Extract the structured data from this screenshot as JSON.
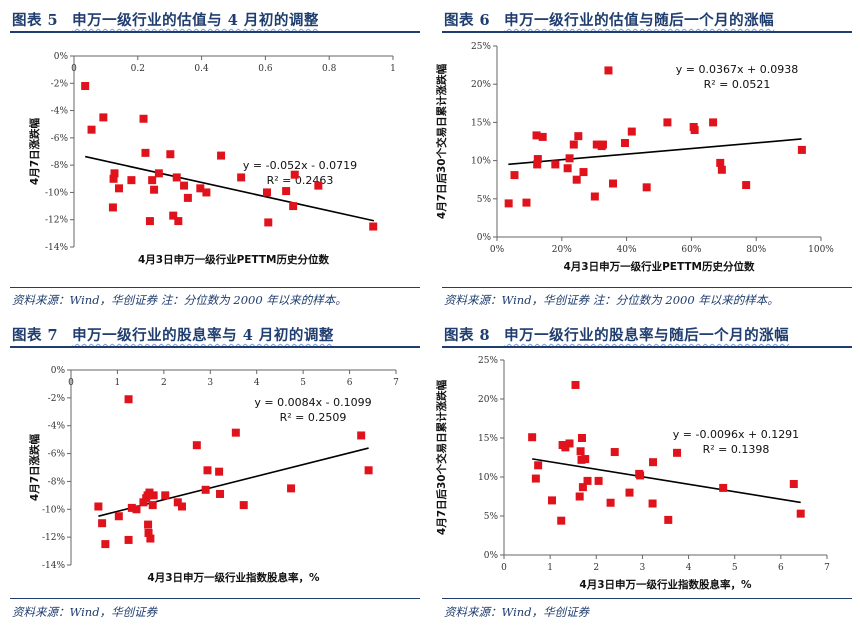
{
  "colors": {
    "title": "#1f3d6e",
    "marker": "#e0121b",
    "trend": "#000000"
  },
  "panels": [
    {
      "title_num": "图表 5",
      "title_text": "申万一级行业的估值与 4 月初的调整",
      "source": "资料来源：Wind，华创证券 注：分位数为 2000 年以来的样本。"
    },
    {
      "title_num": "图表 6",
      "title_text": "申万一级行业的估值与随后一个月的涨幅",
      "source": "资料来源：Wind，华创证券 注：分位数为 2000 年以来的样本。"
    },
    {
      "title_num": "图表 7",
      "title_text": "申万一级行业的股息率与 4 月初的调整",
      "source": "资料来源：Wind，华创证券"
    },
    {
      "title_num": "图表 8",
      "title_text": "申万一级行业的股息率与随后一个月的涨幅",
      "source": "资料来源：Wind，华创证券"
    }
  ],
  "chart_data": [
    {
      "type": "scatter",
      "title": "申万一级行业的估值与 4 月初的调整",
      "xlabel": "4月3日申万一级行业PETTM历史分位数",
      "ylabel": "4月7日涨跌幅",
      "xlim": [
        0,
        1
      ],
      "ylim": [
        -0.14,
        0
      ],
      "x_axis_position": "top",
      "xticks": [
        0,
        0.2,
        0.4,
        0.6,
        0.8,
        1
      ],
      "xtick_labels": [
        "0",
        "0.2",
        "0.4",
        "0.6",
        "0.8",
        "1"
      ],
      "yticks": [
        0,
        -0.02,
        -0.04,
        -0.06,
        -0.08,
        -0.1,
        -0.12,
        -0.14
      ],
      "ytick_labels": [
        "0%",
        "-2%",
        "-4%",
        "-6%",
        "-8%",
        "-10%",
        "-12%",
        "-14%"
      ],
      "trendline": {
        "slope": -0.052,
        "intercept": -0.0719,
        "x_range": [
          0.035,
          0.94
        ],
        "equation": "y = -0.052x - 0.0719",
        "r2": "R² = 0.2463"
      },
      "grid": false,
      "points": [
        [
          0.035,
          -0.022
        ],
        [
          0.055,
          -0.054
        ],
        [
          0.092,
          -0.045
        ],
        [
          0.218,
          -0.046
        ],
        [
          0.224,
          -0.071
        ],
        [
          0.302,
          -0.072
        ],
        [
          0.461,
          -0.073
        ],
        [
          0.127,
          -0.086
        ],
        [
          0.124,
          -0.09
        ],
        [
          0.141,
          -0.097
        ],
        [
          0.18,
          -0.091
        ],
        [
          0.122,
          -0.111
        ],
        [
          0.245,
          -0.091
        ],
        [
          0.251,
          -0.098
        ],
        [
          0.266,
          -0.086
        ],
        [
          0.322,
          -0.089
        ],
        [
          0.345,
          -0.095
        ],
        [
          0.357,
          -0.104
        ],
        [
          0.311,
          -0.117
        ],
        [
          0.327,
          -0.121
        ],
        [
          0.238,
          -0.121
        ],
        [
          0.396,
          -0.097
        ],
        [
          0.415,
          -0.1
        ],
        [
          0.524,
          -0.089
        ],
        [
          0.605,
          -0.1
        ],
        [
          0.609,
          -0.122
        ],
        [
          0.665,
          -0.099
        ],
        [
          0.692,
          -0.087
        ],
        [
          0.687,
          -0.11
        ],
        [
          0.766,
          -0.095
        ],
        [
          0.938,
          -0.125
        ]
      ]
    },
    {
      "type": "scatter",
      "title": "申万一级行业的估值与随后一个月的涨幅",
      "xlabel": "4月3日申万一级行业PETTM历史分位数",
      "ylabel": "4月7日后30个交易日累计涨跌幅",
      "xlim": [
        0,
        1
      ],
      "ylim": [
        0,
        0.25
      ],
      "x_axis_position": "bottom",
      "xticks": [
        0,
        0.2,
        0.4,
        0.6,
        0.8,
        1
      ],
      "xtick_labels": [
        "0%",
        "20%",
        "40%",
        "60%",
        "80%",
        "100%"
      ],
      "yticks": [
        0,
        0.05,
        0.1,
        0.15,
        0.2,
        0.25
      ],
      "ytick_labels": [
        "0%",
        "5%",
        "10%",
        "15%",
        "20%",
        "25%"
      ],
      "trendline": {
        "slope": 0.0367,
        "intercept": 0.0938,
        "x_range": [
          0.035,
          0.94
        ],
        "equation": "y = 0.0367x + 0.0938",
        "r2": "R² = 0.0521"
      },
      "grid": false,
      "points": [
        [
          0.344,
          0.218
        ],
        [
          0.122,
          0.133
        ],
        [
          0.141,
          0.131
        ],
        [
          0.251,
          0.132
        ],
        [
          0.237,
          0.121
        ],
        [
          0.308,
          0.121
        ],
        [
          0.327,
          0.121
        ],
        [
          0.323,
          0.119
        ],
        [
          0.395,
          0.123
        ],
        [
          0.416,
          0.138
        ],
        [
          0.526,
          0.15
        ],
        [
          0.607,
          0.144
        ],
        [
          0.61,
          0.14
        ],
        [
          0.667,
          0.15
        ],
        [
          0.941,
          0.114
        ],
        [
          0.126,
          0.102
        ],
        [
          0.124,
          0.095
        ],
        [
          0.18,
          0.095
        ],
        [
          0.224,
          0.103
        ],
        [
          0.218,
          0.09
        ],
        [
          0.267,
          0.085
        ],
        [
          0.246,
          0.075
        ],
        [
          0.054,
          0.081
        ],
        [
          0.036,
          0.044
        ],
        [
          0.091,
          0.045
        ],
        [
          0.302,
          0.053
        ],
        [
          0.358,
          0.07
        ],
        [
          0.462,
          0.065
        ],
        [
          0.689,
          0.097
        ],
        [
          0.694,
          0.088
        ],
        [
          0.769,
          0.068
        ]
      ]
    },
    {
      "type": "scatter",
      "title": "申万一级行业的股息率与 4 月初的调整",
      "xlabel": "4月3日申万一级行业指数股息率，%",
      "ylabel": "4月7日涨跌幅",
      "xlim": [
        0,
        7
      ],
      "ylim": [
        -0.14,
        0
      ],
      "x_axis_position": "top",
      "xticks": [
        0,
        1,
        2,
        3,
        4,
        5,
        6,
        7
      ],
      "xtick_labels": [
        "0",
        "1",
        "2",
        "3",
        "4",
        "5",
        "6",
        "7"
      ],
      "yticks": [
        0,
        -0.02,
        -0.04,
        -0.06,
        -0.08,
        -0.1,
        -0.12,
        -0.14
      ],
      "ytick_labels": [
        "0%",
        "-2%",
        "-4%",
        "-6%",
        "-8%",
        "-10%",
        "-12%",
        "-14%"
      ],
      "trendline": {
        "slope": 0.0084,
        "intercept": -0.1099,
        "x_range": [
          0.59,
          6.41
        ],
        "equation": "y = 0.0084x - 0.1099",
        "r2": "R² = 0.2509"
      },
      "grid": false,
      "points": [
        [
          1.24,
          -0.021
        ],
        [
          3.55,
          -0.045
        ],
        [
          6.25,
          -0.047
        ],
        [
          2.71,
          -0.054
        ],
        [
          2.94,
          -0.072
        ],
        [
          3.19,
          -0.073
        ],
        [
          6.41,
          -0.072
        ],
        [
          4.74,
          -0.085
        ],
        [
          2.9,
          -0.086
        ],
        [
          3.21,
          -0.089
        ],
        [
          3.72,
          -0.097
        ],
        [
          2.03,
          -0.09
        ],
        [
          2.3,
          -0.095
        ],
        [
          2.39,
          -0.098
        ],
        [
          1.69,
          -0.088
        ],
        [
          1.65,
          -0.09
        ],
        [
          1.78,
          -0.09
        ],
        [
          1.62,
          -0.092
        ],
        [
          1.56,
          -0.095
        ],
        [
          1.76,
          -0.097
        ],
        [
          1.31,
          -0.099
        ],
        [
          1.41,
          -0.1
        ],
        [
          0.59,
          -0.098
        ],
        [
          1.03,
          -0.105
        ],
        [
          0.67,
          -0.11
        ],
        [
          1.66,
          -0.111
        ],
        [
          1.67,
          -0.117
        ],
        [
          1.71,
          -0.121
        ],
        [
          1.24,
          -0.122
        ],
        [
          0.74,
          -0.125
        ]
      ]
    },
    {
      "type": "scatter",
      "title": "申万一级行业的股息率与随后一个月的涨幅",
      "xlabel": "4月3日申万一级行业指数股息率，%",
      "ylabel": "4月7日后30个交易日累计涨跌幅",
      "xlim": [
        0,
        7
      ],
      "ylim": [
        0,
        0.25
      ],
      "x_axis_position": "bottom",
      "xticks": [
        0,
        1,
        2,
        3,
        4,
        5,
        6,
        7
      ],
      "xtick_labels": [
        "0",
        "1",
        "2",
        "3",
        "4",
        "5",
        "6",
        "7"
      ],
      "yticks": [
        0,
        0.05,
        0.1,
        0.15,
        0.2,
        0.25
      ],
      "ytick_labels": [
        "0%",
        "5%",
        "10%",
        "15%",
        "20%",
        "25%"
      ],
      "trendline": {
        "slope": -0.0096,
        "intercept": 0.1291,
        "x_range": [
          0.61,
          6.43
        ],
        "equation": "y = -0.0096x + 0.1291",
        "r2": "R² = 0.1398"
      },
      "grid": false,
      "points": [
        [
          1.55,
          0.218
        ],
        [
          0.61,
          0.151
        ],
        [
          1.69,
          0.15
        ],
        [
          1.42,
          0.143
        ],
        [
          1.27,
          0.141
        ],
        [
          1.33,
          0.138
        ],
        [
          1.66,
          0.133
        ],
        [
          2.4,
          0.132
        ],
        [
          3.75,
          0.131
        ],
        [
          1.76,
          0.123
        ],
        [
          1.68,
          0.122
        ],
        [
          3.23,
          0.119
        ],
        [
          0.74,
          0.115
        ],
        [
          2.93,
          0.104
        ],
        [
          2.95,
          0.102
        ],
        [
          0.69,
          0.098
        ],
        [
          2.05,
          0.095
        ],
        [
          1.81,
          0.095
        ],
        [
          1.71,
          0.087
        ],
        [
          4.75,
          0.086
        ],
        [
          6.28,
          0.091
        ],
        [
          2.72,
          0.08
        ],
        [
          1.64,
          0.075
        ],
        [
          1.04,
          0.07
        ],
        [
          2.31,
          0.067
        ],
        [
          3.22,
          0.066
        ],
        [
          6.43,
          0.053
        ],
        [
          1.24,
          0.044
        ],
        [
          3.56,
          0.045
        ]
      ]
    }
  ]
}
